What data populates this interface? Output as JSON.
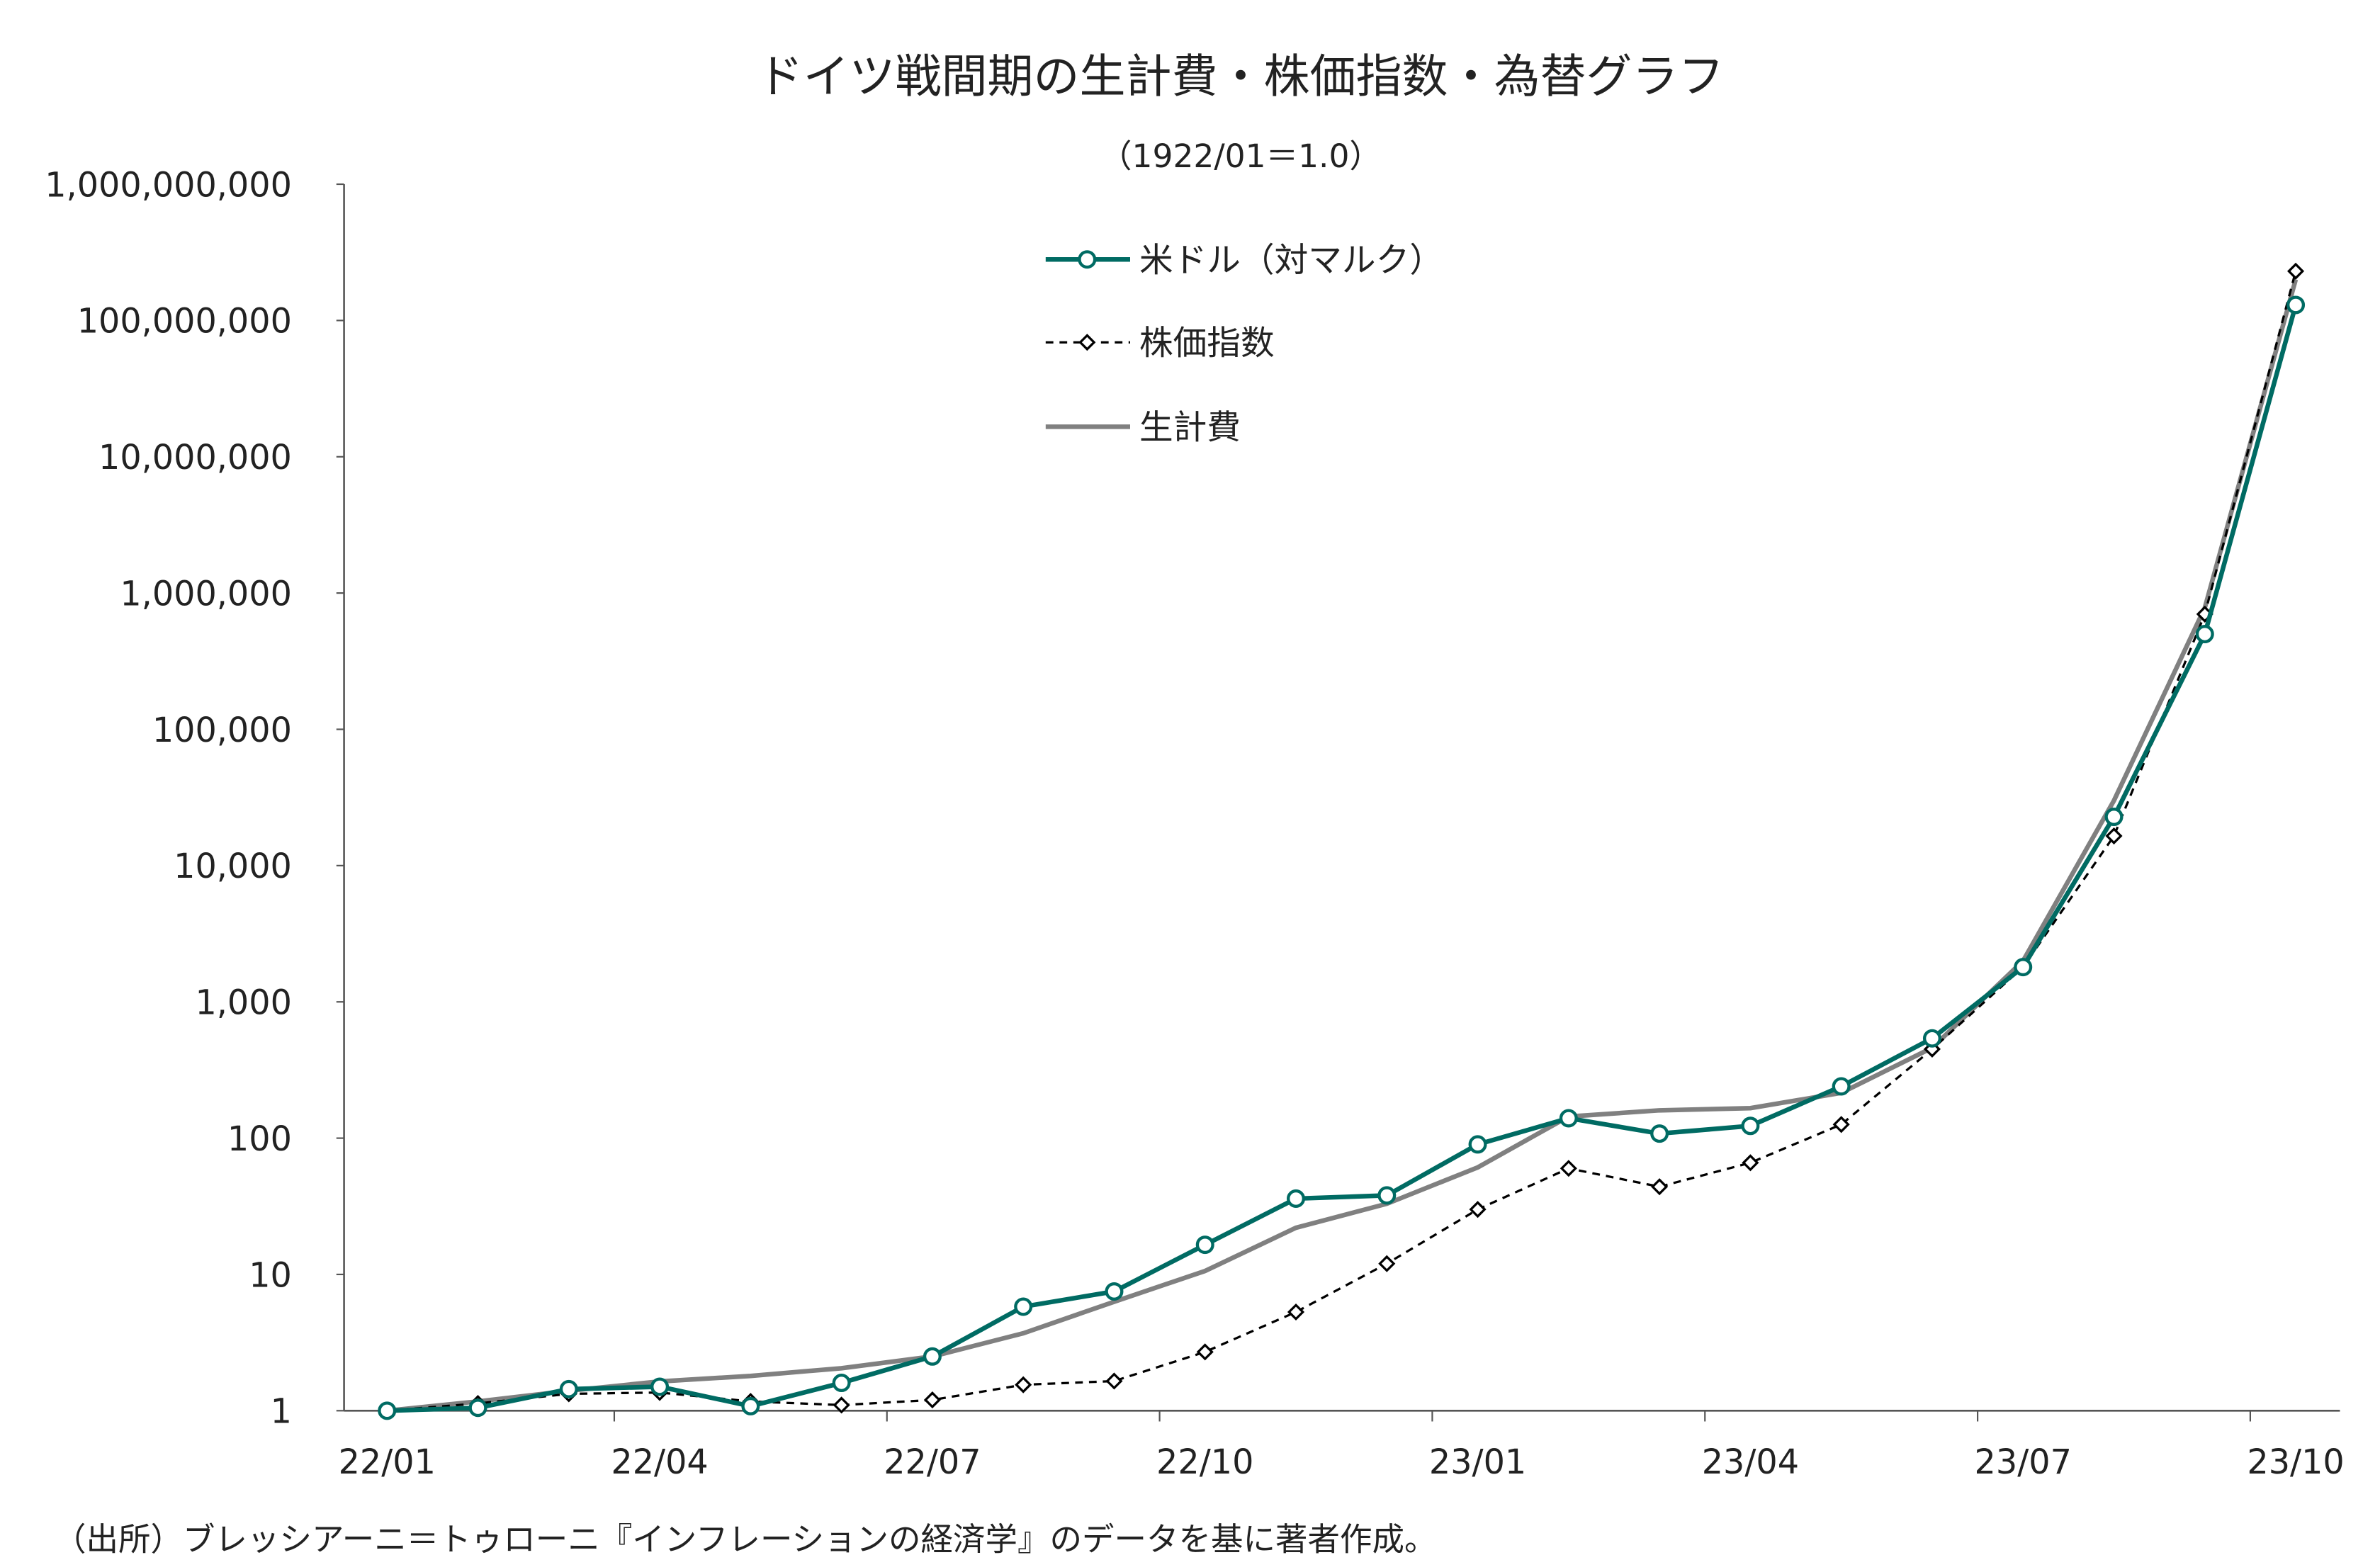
{
  "chart_data": {
    "type": "line",
    "title": "ドイツ戦間期の生計費・株価指数・為替グラフ",
    "subtitle": "（1922/01＝1.0）",
    "y_scale": "log",
    "ylim": [
      1,
      1000000000
    ],
    "y_ticks": [
      1,
      10,
      100,
      1000,
      10000,
      100000,
      1000000,
      10000000,
      100000000,
      1000000000
    ],
    "y_tick_labels": [
      "1",
      "10",
      "100",
      "1,000",
      "10,000",
      "100,000",
      "1,000,000",
      "10,000,000",
      "100,000,000",
      "1,000,000,000"
    ],
    "x": [
      "22/01",
      "22/02",
      "22/03",
      "22/04",
      "22/05",
      "22/06",
      "22/07",
      "22/08",
      "22/09",
      "22/10",
      "22/11",
      "22/12",
      "23/01",
      "23/02",
      "23/03",
      "23/04",
      "23/05",
      "23/06",
      "23/07",
      "23/08",
      "23/09",
      "23/10"
    ],
    "x_tick_labels": [
      "22/01",
      "22/04",
      "22/07",
      "22/10",
      "23/01",
      "23/04",
      "23/07",
      "23/10"
    ],
    "grid": false,
    "legend_position": "top-left-inside",
    "series": [
      {
        "name": "米ドル（対マルク）",
        "color": "#006b63",
        "style": "solid-circle-markers",
        "values": [
          1,
          1.05,
          1.44,
          1.5,
          1.08,
          1.6,
          2.5,
          5.8,
          7.5,
          16.5,
          36,
          38,
          90,
          140,
          108,
          123,
          240,
          540,
          1800,
          22800,
          500000,
          130000000
        ]
      },
      {
        "name": "株価指数",
        "color": "#000000",
        "style": "dashed-diamond-markers",
        "values": [
          1,
          1.13,
          1.33,
          1.36,
          1.17,
          1.1,
          1.2,
          1.55,
          1.65,
          2.7,
          5.3,
          12,
          30,
          60,
          44,
          66,
          126,
          450,
          1800,
          16500,
          700000,
          230000000
        ]
      },
      {
        "name": "生計費",
        "color": "#808080",
        "style": "solid",
        "values": [
          1,
          1.17,
          1.4,
          1.64,
          1.8,
          2.05,
          2.5,
          3.7,
          6.3,
          10.6,
          22,
          33,
          61,
          144,
          160,
          166,
          215,
          460,
          2000,
          30000,
          780000,
          200000000
        ]
      }
    ],
    "source_note": "（出所）ブレッシアーニ＝トゥローニ『インフレーションの経済学』のデータを基に著者作成。"
  }
}
